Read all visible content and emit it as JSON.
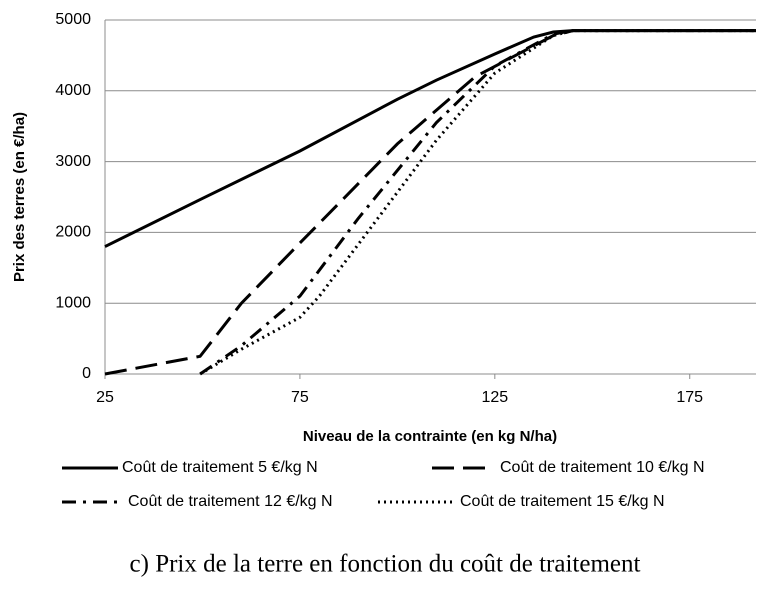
{
  "chart_data": {
    "type": "line",
    "xlabel": "Niveau de la contrainte (en kg N/ha)",
    "ylabel": "Prix des terres (en €/ha)",
    "caption": "c) Prix de la terre en fonction du coût de traitement",
    "xlim": [
      25,
      192
    ],
    "xticks": [
      25,
      75,
      125,
      175
    ],
    "ylim": [
      0,
      5000
    ],
    "yticks": [
      0,
      1000,
      2000,
      3000,
      4000,
      5000
    ],
    "grid": true,
    "series": [
      {
        "name": "Coût de traitement 5 €/kg N",
        "color": "#000000",
        "line_style": "solid",
        "x": [
          25,
          50,
          75,
          100,
          110,
          125,
          135,
          140,
          145,
          192
        ],
        "values": [
          1800,
          2480,
          3150,
          3880,
          4150,
          4520,
          4760,
          4830,
          4850,
          4850
        ]
      },
      {
        "name": "Coût de traitement 10 €/kg N",
        "color": "#000000",
        "line_style": "dashed",
        "x": [
          25,
          49.4,
          60,
          75,
          100,
          120,
          140,
          145,
          192
        ],
        "values": [
          0,
          250,
          1000,
          1850,
          3250,
          4200,
          4780,
          4850,
          4850
        ]
      },
      {
        "name": "Coût de traitement 12 €/kg N",
        "color": "#000000",
        "line_style": "dashdot",
        "x": [
          49.4,
          60,
          75,
          90,
          110,
          125,
          140,
          145,
          192
        ],
        "values": [
          0,
          400,
          1100,
          2200,
          3550,
          4350,
          4800,
          4850,
          4850
        ]
      },
      {
        "name": "Coût de traitement 15 €/kg N",
        "color": "#000000",
        "line_style": "dotted",
        "x": [
          49.4,
          60,
          75,
          80,
          95,
          110,
          125,
          140,
          145,
          192
        ],
        "values": [
          0,
          350,
          800,
          1100,
          2200,
          3300,
          4250,
          4780,
          4850,
          4850
        ]
      }
    ]
  }
}
